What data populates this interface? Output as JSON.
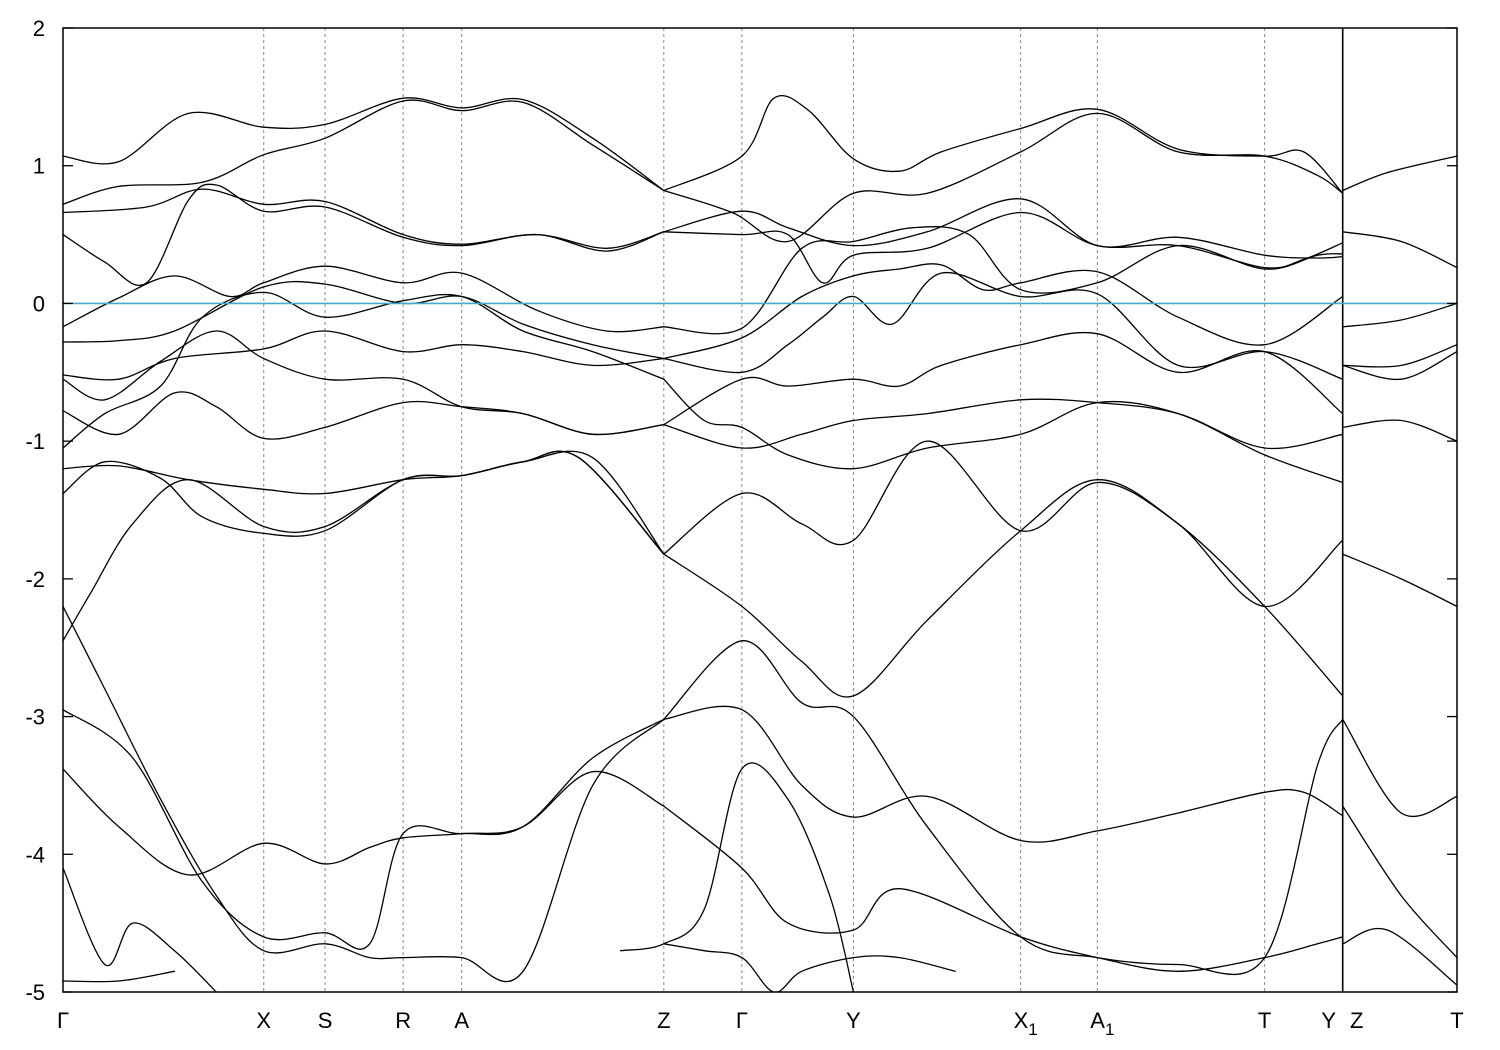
{
  "chart_data": {
    "type": "line",
    "title": "",
    "xlabel": "",
    "ylabel": "",
    "ylim": [
      -5,
      2
    ],
    "y_ticks": [
      -5,
      -4,
      -3,
      -2,
      -1,
      0,
      1,
      2
    ],
    "grid": "vertical dashed lines at high-symmetry points",
    "fermi_level": 0,
    "fermi_color": "#4aa8c8",
    "band_color": "#000000",
    "k_path": [
      {
        "label": "Γ",
        "sub": "",
        "x": 0.0
      },
      {
        "label": "X",
        "sub": "",
        "x": 1.44
      },
      {
        "label": "S",
        "sub": "",
        "x": 1.88
      },
      {
        "label": "R",
        "sub": "",
        "x": 2.44
      },
      {
        "label": "A",
        "sub": "",
        "x": 2.86
      },
      {
        "label": "Z",
        "sub": "",
        "x": 4.31
      },
      {
        "label": "Γ",
        "sub": "",
        "x": 4.87
      },
      {
        "label": "Y",
        "sub": "",
        "x": 5.67
      },
      {
        "label": "X",
        "sub": "1",
        "x": 6.87
      },
      {
        "label": "A",
        "sub": "1",
        "x": 7.42
      },
      {
        "label": "T",
        "sub": "",
        "x": 8.62
      },
      {
        "label": "Y",
        "sub": "",
        "x": 9.18
      },
      {
        "label": "Z",
        "sub": "",
        "x": 9.18
      },
      {
        "label": "T",
        "sub": "",
        "x": 10.0
      }
    ],
    "xlim": [
      0,
      10.0
    ],
    "path_breaks": [
      9.18
    ],
    "series": [
      {
        "x": [
          0,
          0.4,
          0.9,
          1.44,
          1.88,
          2.44,
          2.86,
          3.3,
          3.8,
          4.31
        ],
        "values": [
          1.07,
          1.03,
          1.38,
          1.28,
          1.3,
          1.49,
          1.42,
          1.48,
          1.2,
          0.82
        ]
      },
      {
        "x": [
          4.31,
          4.87,
          5.1,
          5.35,
          5.67,
          6.0,
          6.3,
          6.87,
          7.42,
          8.0,
          8.62,
          8.9,
          9.18
        ],
        "values": [
          0.82,
          1.07,
          1.49,
          1.4,
          1.05,
          0.96,
          1.1,
          1.27,
          1.41,
          1.12,
          1.07,
          1.1,
          0.8
        ]
      },
      {
        "x": [
          9.18,
          9.5,
          10.0
        ],
        "values": [
          0.82,
          0.95,
          1.07
        ]
      },
      {
        "x": [
          0,
          0.4,
          1.0,
          1.44,
          1.88,
          2.44,
          2.86,
          3.3,
          3.8,
          4.31
        ],
        "values": [
          0.72,
          0.85,
          0.88,
          1.08,
          1.2,
          1.47,
          1.4,
          1.46,
          1.15,
          0.82
        ]
      },
      {
        "x": [
          4.31,
          4.8,
          5.2,
          5.67,
          6.2,
          6.87,
          7.42,
          8.0,
          8.62,
          9.0,
          9.18
        ],
        "values": [
          0.82,
          0.66,
          0.45,
          0.8,
          0.8,
          1.1,
          1.38,
          1.1,
          1.07,
          0.93,
          0.8
        ]
      },
      {
        "x": [
          0,
          0.6,
          1.0,
          1.44,
          1.88,
          2.44,
          2.86,
          3.4,
          3.9,
          4.31
        ],
        "values": [
          0.66,
          0.7,
          0.83,
          0.72,
          0.74,
          0.5,
          0.43,
          0.5,
          0.4,
          0.52
        ]
      },
      {
        "x": [
          4.31,
          4.87,
          5.2,
          5.67,
          6.2,
          6.87,
          7.42,
          8.0,
          8.62,
          9.0,
          9.18
        ],
        "values": [
          0.52,
          0.67,
          0.55,
          0.42,
          0.52,
          0.76,
          0.42,
          0.48,
          0.35,
          0.33,
          0.34
        ]
      },
      {
        "x": [
          0,
          0.3,
          0.6,
          0.9,
          1.1,
          1.44,
          1.88,
          2.44,
          2.86,
          3.4,
          3.9,
          4.31
        ],
        "values": [
          0.5,
          0.3,
          0.15,
          0.75,
          0.86,
          0.67,
          0.7,
          0.48,
          0.42,
          0.5,
          0.38,
          0.52
        ]
      },
      {
        "x": [
          4.31,
          4.87,
          5.2,
          5.45,
          5.67,
          6.2,
          6.87,
          7.42,
          8.0,
          8.62,
          8.9,
          9.18
        ],
        "values": [
          0.52,
          0.5,
          0.5,
          0.15,
          0.35,
          0.4,
          0.66,
          0.42,
          0.42,
          0.26,
          0.32,
          0.44
        ]
      },
      {
        "x": [
          9.18,
          9.6,
          10.0
        ],
        "values": [
          0.52,
          0.45,
          0.26
        ]
      },
      {
        "x": [
          0,
          0.4,
          0.8,
          1.2,
          1.44,
          1.88,
          2.44,
          2.86,
          3.4,
          3.9,
          4.31
        ],
        "values": [
          -0.17,
          0.04,
          0.2,
          0.05,
          0.15,
          0.27,
          0.15,
          0.22,
          -0.05,
          -0.2,
          -0.17
        ]
      },
      {
        "x": [
          4.31,
          4.87,
          5.3,
          5.67,
          6.1,
          6.5,
          6.87,
          7.42,
          8.0,
          8.62,
          9.0,
          9.18
        ],
        "values": [
          -0.17,
          -0.18,
          0.4,
          0.45,
          0.55,
          0.5,
          0.1,
          0.15,
          0.42,
          0.25,
          0.35,
          0.36
        ]
      },
      {
        "x": [
          9.18,
          9.6,
          10.0
        ],
        "values": [
          -0.17,
          -0.12,
          0.0
        ]
      },
      {
        "x": [
          0,
          0.4,
          0.8,
          1.44,
          1.88,
          2.44,
          2.86,
          3.3,
          3.8,
          4.31
        ],
        "values": [
          -0.28,
          -0.27,
          -0.2,
          0.12,
          0.14,
          0.0,
          0.05,
          -0.15,
          -0.3,
          -0.4
        ]
      },
      {
        "x": [
          4.31,
          4.87,
          5.3,
          5.67,
          6.0,
          6.3,
          6.6,
          6.87,
          7.42,
          8.0,
          8.62,
          9.18
        ],
        "values": [
          -0.4,
          -0.25,
          0.05,
          0.2,
          0.25,
          0.28,
          0.1,
          0.15,
          0.23,
          -0.1,
          -0.3,
          0.05
        ]
      },
      {
        "x": [
          9.18,
          9.6,
          10.0
        ],
        "values": [
          -0.45,
          -0.45,
          -0.3
        ]
      },
      {
        "x": [
          0,
          0.4,
          0.8,
          1.44,
          1.88,
          2.44,
          2.86,
          3.3,
          3.8,
          4.31
        ],
        "values": [
          -0.52,
          -0.55,
          -0.4,
          -0.33,
          -0.2,
          -0.35,
          -0.3,
          -0.35,
          -0.45,
          -0.4
        ]
      },
      {
        "x": [
          4.31,
          4.87,
          5.2,
          5.45,
          5.67,
          5.95,
          6.3,
          6.87,
          7.42,
          8.0,
          8.62,
          9.18
        ],
        "values": [
          -0.4,
          -0.5,
          -0.3,
          -0.1,
          0.05,
          -0.15,
          0.22,
          0.05,
          0.07,
          -0.45,
          -0.35,
          -0.55
        ]
      },
      {
        "x": [
          9.18,
          9.6,
          10.0
        ],
        "values": [
          -0.45,
          -0.55,
          -0.35
        ]
      },
      {
        "x": [
          0,
          0.3,
          0.7,
          1.1,
          1.44,
          1.88,
          2.44,
          2.86,
          3.3,
          3.8,
          4.31
        ],
        "values": [
          -0.55,
          -0.7,
          -0.42,
          -0.2,
          -0.4,
          -0.55,
          -0.55,
          -0.75,
          -0.8,
          -0.95,
          -0.88
        ]
      },
      {
        "x": [
          4.31,
          4.87,
          5.2,
          5.67,
          6.0,
          6.3,
          6.87,
          7.42,
          8.0,
          8.62,
          9.18
        ],
        "values": [
          -0.88,
          -0.55,
          -0.6,
          -0.55,
          -0.6,
          -0.45,
          -0.3,
          -0.22,
          -0.5,
          -0.35,
          -0.8
        ]
      },
      {
        "x": [
          9.18,
          9.6,
          10.0
        ],
        "values": [
          -0.9,
          -0.85,
          -1.0
        ]
      },
      {
        "x": [
          0,
          0.4,
          0.8,
          1.1,
          1.44,
          1.88,
          2.44,
          2.86,
          3.3,
          3.8,
          4.31
        ],
        "values": [
          -0.78,
          -0.95,
          -0.65,
          -0.75,
          -0.98,
          -0.9,
          -0.72,
          -0.75,
          -0.8,
          -0.95,
          -0.88
        ]
      },
      {
        "x": [
          4.31,
          4.87,
          5.3,
          5.67,
          6.2,
          6.87,
          7.42,
          8.0,
          8.62,
          9.18
        ],
        "values": [
          -0.88,
          -1.05,
          -0.95,
          -0.85,
          -0.8,
          -0.7,
          -0.72,
          -0.8,
          -1.05,
          -0.95
        ]
      },
      {
        "x": [
          0,
          0.3,
          0.7,
          1.0,
          1.44,
          1.88,
          2.44,
          2.86,
          3.3,
          3.8,
          4.31
        ],
        "values": [
          -1.05,
          -0.8,
          -0.6,
          -0.1,
          0.08,
          -0.1,
          0.02,
          0.05,
          -0.2,
          -0.35,
          -0.55
        ]
      },
      {
        "x": [
          4.31,
          4.6,
          4.87,
          5.2,
          5.67,
          6.2,
          6.87,
          7.42,
          8.0,
          8.62,
          9.18
        ],
        "values": [
          -0.55,
          -0.85,
          -0.9,
          -1.1,
          -1.2,
          -1.05,
          -0.95,
          -0.72,
          -0.8,
          -1.1,
          -1.3
        ]
      },
      {
        "x": [
          0,
          0.4,
          0.9,
          1.44,
          1.88,
          2.44,
          2.86,
          3.3,
          3.7,
          4.31
        ],
        "values": [
          -1.2,
          -1.18,
          -1.28,
          -1.35,
          -1.38,
          -1.28,
          -1.25,
          -1.15,
          -1.12,
          -1.82
        ]
      },
      {
        "x": [
          4.31,
          4.87,
          5.3,
          5.67,
          6.2,
          6.87,
          7.42,
          8.0,
          8.62,
          9.18
        ],
        "values": [
          -1.82,
          -2.2,
          -2.6,
          -2.85,
          -2.3,
          -1.65,
          -1.28,
          -1.6,
          -2.2,
          -2.85
        ]
      },
      {
        "x": [
          9.18,
          9.6,
          10.0
        ],
        "values": [
          -1.82,
          -2.0,
          -2.2
        ]
      },
      {
        "x": [
          0,
          0.3,
          0.7,
          1.0,
          1.44,
          1.88,
          2.44,
          2.86,
          3.3,
          3.7,
          4.31
        ],
        "values": [
          -1.38,
          -1.15,
          -1.27,
          -1.55,
          -1.67,
          -1.65,
          -1.28,
          -1.25,
          -1.15,
          -1.12,
          -1.82
        ]
      },
      {
        "x": [
          4.31,
          4.87,
          5.3,
          5.67,
          6.2,
          6.87,
          7.42,
          8.0,
          8.62,
          9.18
        ],
        "values": [
          -1.82,
          -1.38,
          -1.6,
          -1.72,
          -1.0,
          -1.65,
          -1.3,
          -1.6,
          -2.2,
          -1.72
        ]
      },
      {
        "x": [
          0,
          0.2,
          0.5,
          0.9,
          1.44,
          1.88,
          2.44,
          2.86,
          3.3,
          3.8,
          4.31
        ],
        "values": [
          -2.45,
          -2.1,
          -1.6,
          -1.28,
          -1.62,
          -1.62,
          -1.28,
          -1.25,
          -1.15,
          -1.12,
          -1.82
        ]
      },
      {
        "x": [
          0,
          0.3,
          0.7,
          1.1,
          1.44,
          1.88,
          2.2,
          2.44,
          2.86,
          3.3,
          3.8,
          4.31
        ],
        "values": [
          -2.2,
          -2.8,
          -3.6,
          -4.3,
          -4.7,
          -4.65,
          -4.75,
          -4.75,
          -4.75,
          -4.85,
          -3.5,
          -3.02
        ]
      },
      {
        "x": [
          4.31,
          4.87,
          5.3,
          5.67,
          6.2,
          6.87,
          7.42,
          8.0,
          8.62,
          9.0,
          9.18
        ],
        "values": [
          -3.02,
          -2.45,
          -2.9,
          -3.0,
          -3.8,
          -4.6,
          -4.75,
          -4.8,
          -4.75,
          -3.35,
          -3.02
        ]
      },
      {
        "x": [
          9.18,
          9.6,
          10.0
        ],
        "values": [
          -3.02,
          -3.7,
          -3.58
        ]
      },
      {
        "x": [
          0,
          0.5,
          1.0,
          1.44,
          1.88,
          2.2,
          2.44,
          2.86,
          3.3,
          3.8,
          4.31
        ],
        "values": [
          -2.95,
          -3.3,
          -4.2,
          -4.6,
          -4.57,
          -4.65,
          -3.85,
          -3.85,
          -3.8,
          -3.3,
          -3.02
        ]
      },
      {
        "x": [
          4.31,
          4.87,
          5.3,
          5.67,
          6.2,
          6.87,
          7.42,
          8.0,
          8.62,
          8.9,
          9.18
        ],
        "values": [
          -3.02,
          -2.95,
          -3.5,
          -3.73,
          -3.58,
          -3.9,
          -3.83,
          -3.7,
          -3.55,
          -3.55,
          -3.72
        ]
      },
      {
        "x": [
          0,
          0.4,
          0.9,
          1.44,
          1.88,
          2.2,
          2.44,
          2.86,
          3.3,
          3.8,
          4.31
        ],
        "values": [
          -3.38,
          -3.8,
          -4.15,
          -3.92,
          -4.07,
          -3.95,
          -3.88,
          -3.85,
          -3.8,
          -3.4,
          -3.65
        ]
      },
      {
        "x": [
          4.31,
          4.87,
          5.2,
          5.67,
          6.0,
          6.87,
          7.42,
          8.0,
          8.62,
          9.0,
          9.18
        ],
        "values": [
          -3.65,
          -4.1,
          -4.5,
          -4.55,
          -4.25,
          -4.6,
          -4.75,
          -4.85,
          -4.75,
          -4.65,
          -4.6
        ]
      },
      {
        "x": [
          9.18,
          9.6,
          10.0
        ],
        "values": [
          -3.65,
          -4.3,
          -4.75
        ]
      },
      {
        "x": [
          0,
          0.3,
          0.5,
          0.8,
          1.1
        ],
        "values": [
          -4.1,
          -4.8,
          -4.5,
          -4.7,
          -5.0
        ]
      },
      {
        "x": [
          0,
          0.4,
          0.8
        ],
        "values": [
          -4.92,
          -4.92,
          -4.85
        ]
      },
      {
        "x": [
          4.0,
          4.31,
          4.6,
          4.87,
          5.2,
          5.5,
          5.67
        ],
        "values": [
          -4.7,
          -4.65,
          -4.4,
          -3.38,
          -3.6,
          -4.3,
          -5.0
        ]
      },
      {
        "x": [
          4.31,
          4.6,
          4.87,
          5.1,
          5.3,
          5.67,
          6.0,
          6.4
        ],
        "values": [
          -4.65,
          -4.7,
          -4.75,
          -5.0,
          -4.85,
          -4.75,
          -4.75,
          -4.85
        ]
      },
      {
        "x": [
          9.18,
          9.5,
          10.0
        ],
        "values": [
          -4.65,
          -4.55,
          -4.95
        ]
      }
    ]
  }
}
